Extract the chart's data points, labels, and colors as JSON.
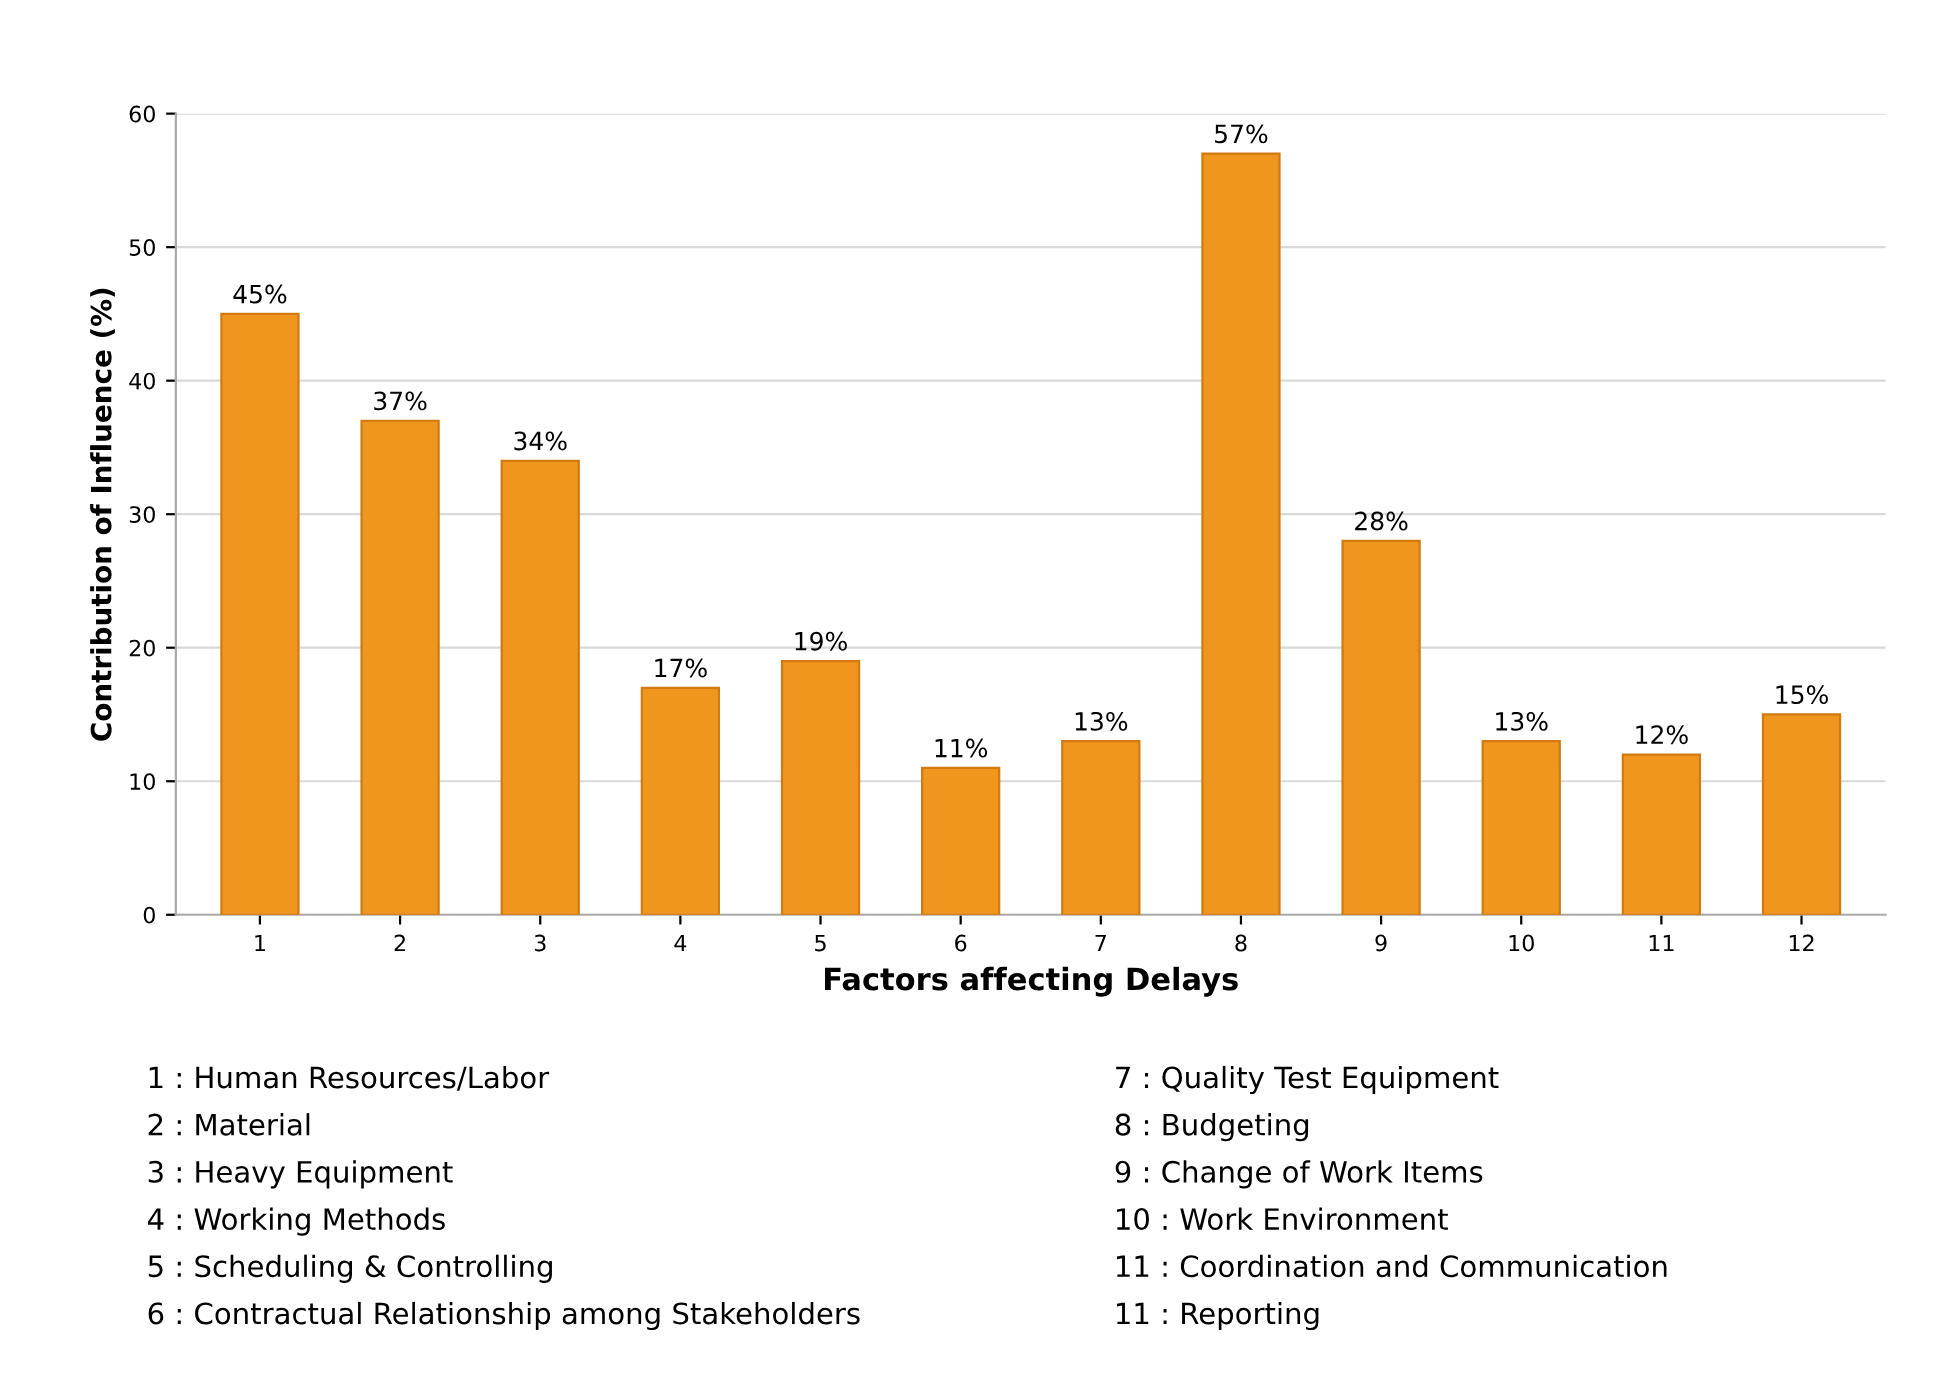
{
  "chart_data": {
    "type": "bar",
    "xlabel": "Factors affecting Delays",
    "ylabel": "Contribution of Influence (%)",
    "categories": [
      "1",
      "2",
      "3",
      "4",
      "5",
      "6",
      "7",
      "8",
      "9",
      "10",
      "11",
      "12"
    ],
    "values": [
      45,
      37,
      34,
      17,
      19,
      11,
      13,
      57,
      28,
      13,
      12,
      15
    ],
    "value_labels": [
      "45%",
      "37%",
      "34%",
      "17%",
      "19%",
      "11%",
      "13%",
      "57%",
      "28%",
      "13%",
      "12%",
      "15%"
    ],
    "color": "#f0961e",
    "ylim": [
      0,
      60
    ],
    "yticks": [
      0,
      10,
      20,
      30,
      40,
      50,
      60
    ],
    "grid": "y",
    "legend": false,
    "annotations": [
      "1 : Human Resources/Labor",
      "2 : Material",
      "3 : Heavy Equipment",
      "4 : Working Methods",
      "5 : Scheduling & Controlling",
      "6 : Contractual Relationship among Stakeholders",
      "7 : Quality Test Equipment",
      "8 : Budgeting",
      "9 : Change of Work Items",
      "10 : Work Environment",
      "11 : Coordination and Communication",
      "11 : Reporting"
    ]
  }
}
